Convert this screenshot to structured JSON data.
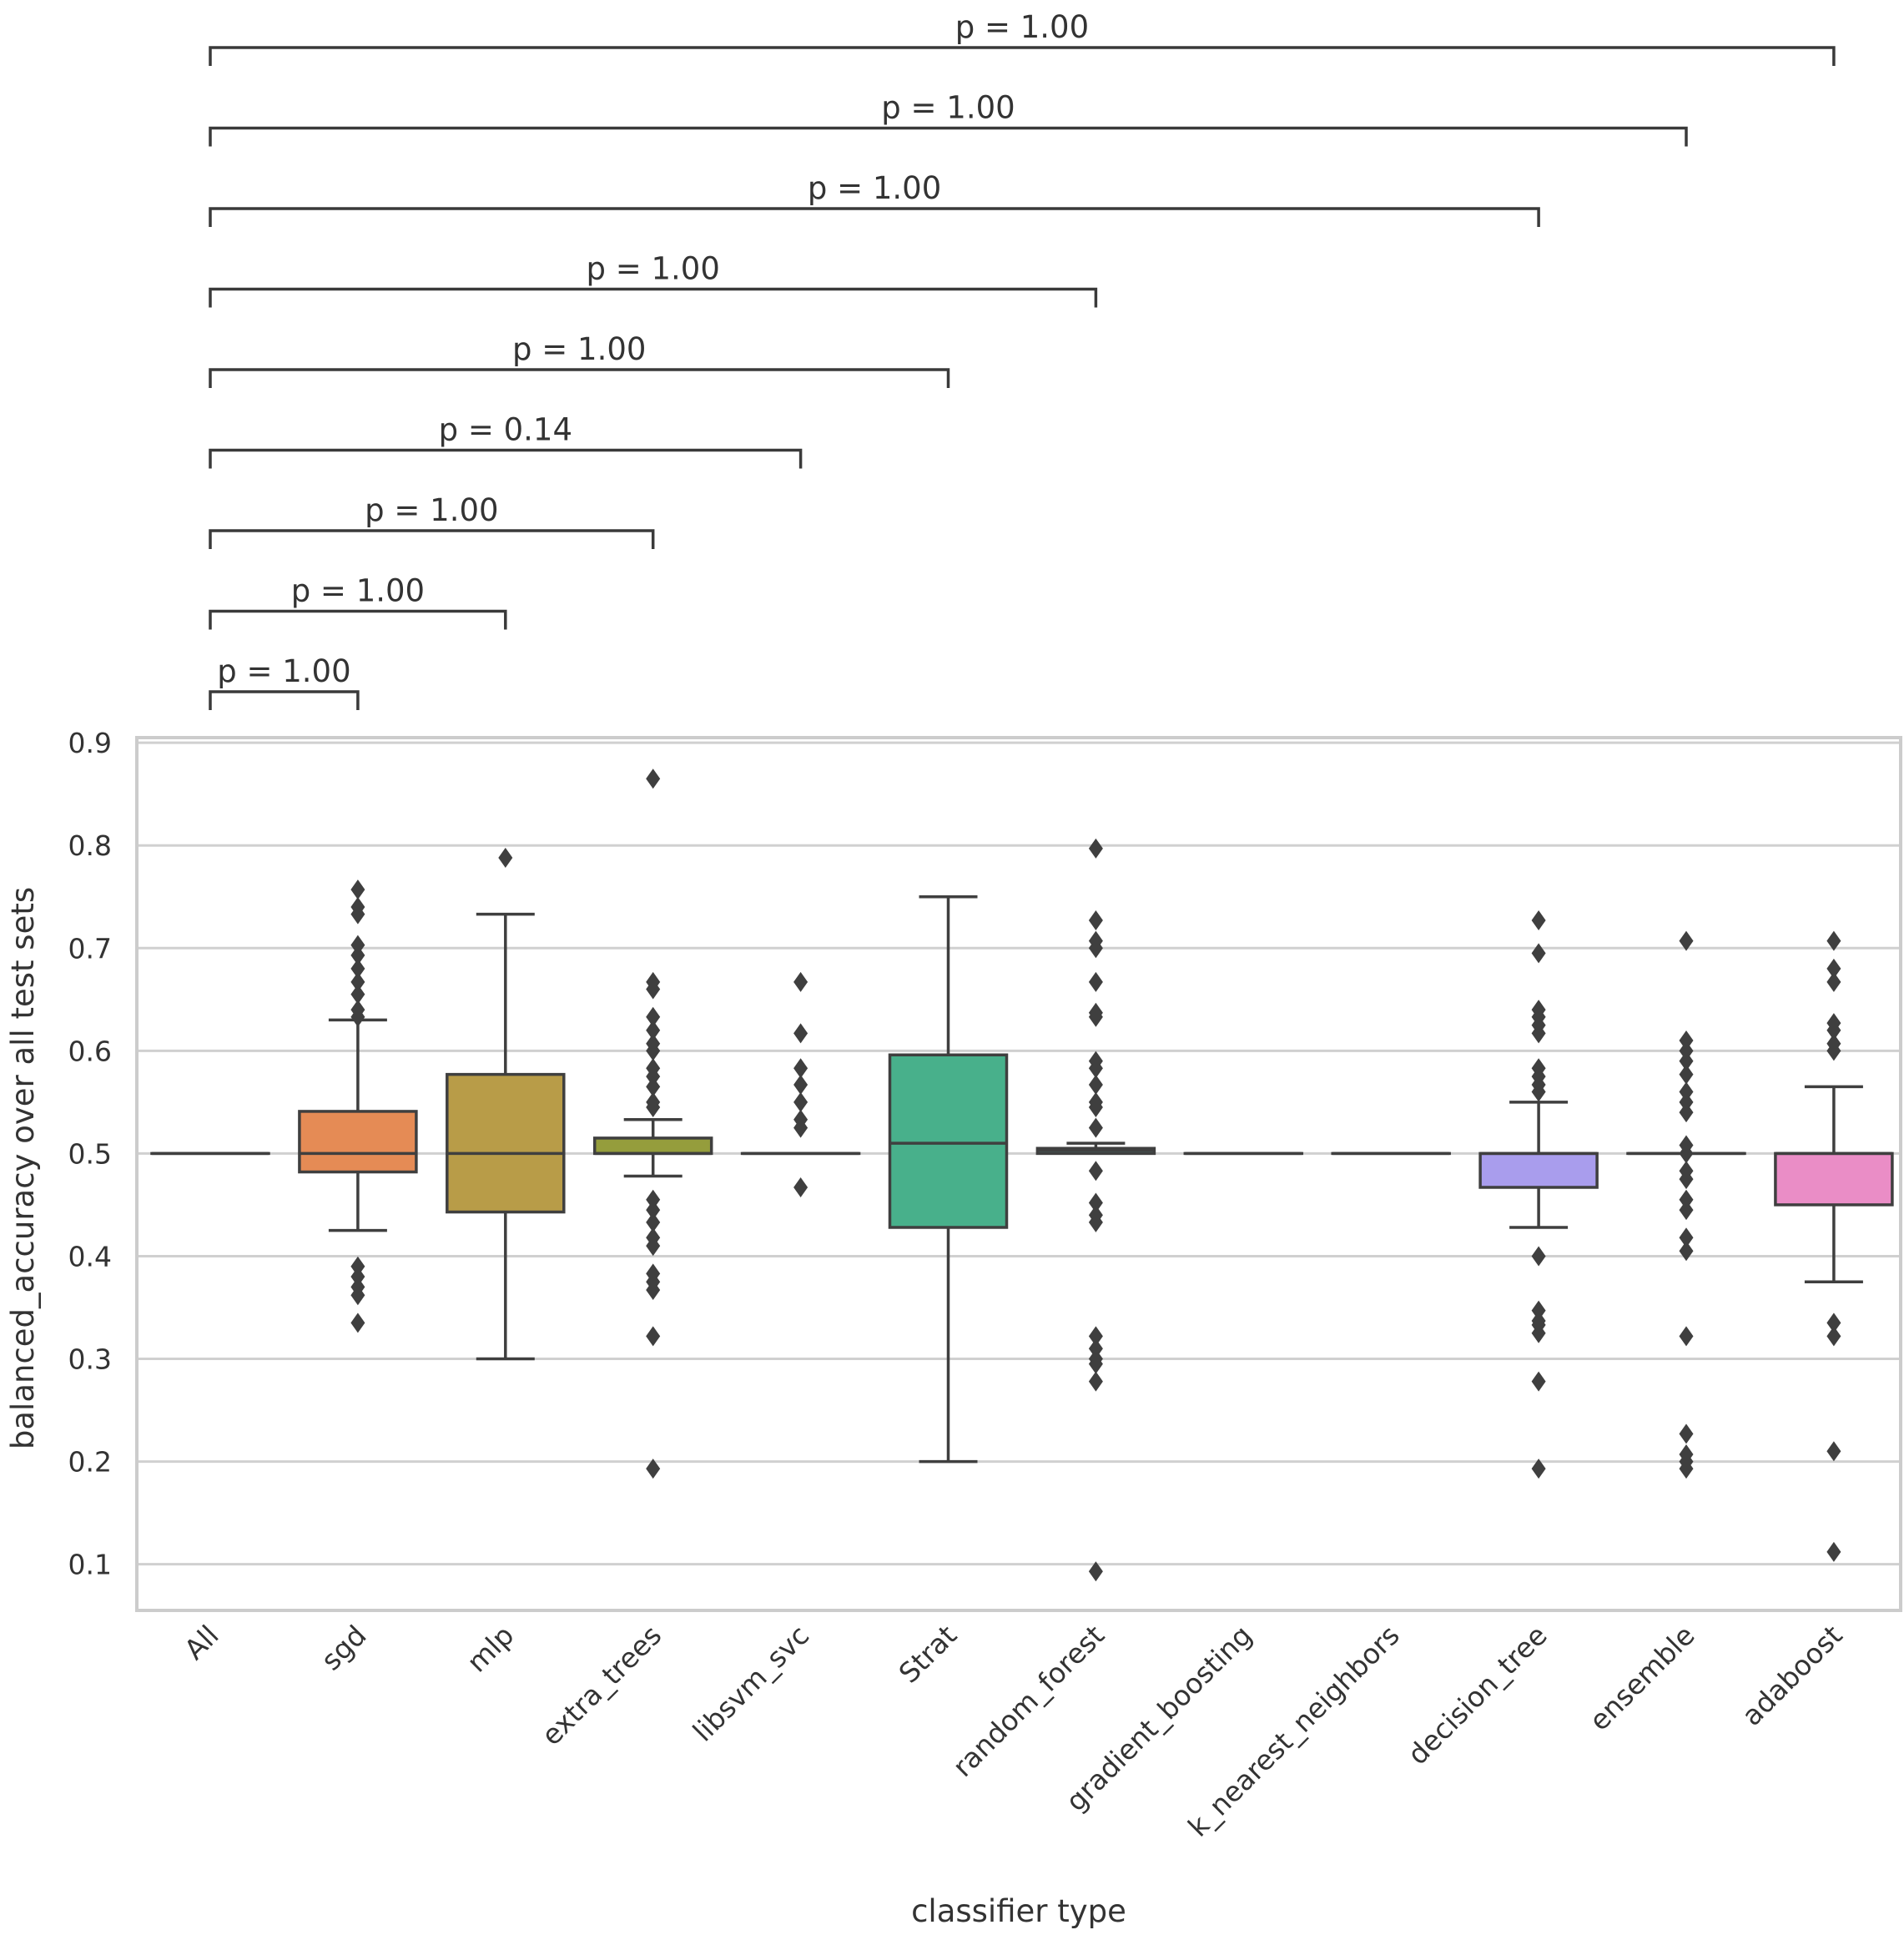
{
  "chart_data": {
    "type": "box",
    "xlabel": "classifier type",
    "ylabel": "balanced_accuracy over all test sets",
    "ylim": [
      0.055,
      0.905
    ],
    "yticks": [
      {
        "value": 0.1,
        "label": "0.1"
      },
      {
        "value": 0.2,
        "label": "0.2"
      },
      {
        "value": 0.3,
        "label": "0.3"
      },
      {
        "value": 0.4,
        "label": "0.4"
      },
      {
        "value": 0.5,
        "label": "0.5"
      },
      {
        "value": 0.6,
        "label": "0.6"
      },
      {
        "value": 0.7,
        "label": "0.7"
      },
      {
        "value": 0.8,
        "label": "0.8"
      },
      {
        "value": 0.9,
        "label": "0.9"
      }
    ],
    "grid": "horizontal",
    "categories": [
      {
        "name": "All",
        "color": "#3b6fb6",
        "q1": 0.5,
        "median": 0.5,
        "q3": 0.5,
        "whisker_low": 0.5,
        "whisker_high": 0.5,
        "fliers": []
      },
      {
        "name": "sgd",
        "color": "#e58b55",
        "q1": 0.482,
        "median": 0.5,
        "q3": 0.541,
        "whisker_low": 0.425,
        "whisker_high": 0.63,
        "fliers": [
          0.757,
          0.74,
          0.733,
          0.703,
          0.693,
          0.68,
          0.667,
          0.655,
          0.64,
          0.633,
          0.39,
          0.38,
          0.37,
          0.362,
          0.335
        ]
      },
      {
        "name": "mlp",
        "color": "#b89c48",
        "q1": 0.443,
        "median": 0.5,
        "q3": 0.577,
        "whisker_low": 0.3,
        "whisker_high": 0.733,
        "fliers": [
          0.788
        ]
      },
      {
        "name": "extra_trees",
        "color": "#959d3c",
        "q1": 0.5,
        "median": 0.5,
        "q3": 0.515,
        "whisker_low": 0.478,
        "whisker_high": 0.533,
        "fliers": [
          0.865,
          0.667,
          0.66,
          0.633,
          0.62,
          0.607,
          0.6,
          0.583,
          0.575,
          0.565,
          0.55,
          0.545,
          0.455,
          0.445,
          0.433,
          0.418,
          0.41,
          0.383,
          0.375,
          0.367,
          0.322,
          0.193
        ]
      },
      {
        "name": "libsvm_svc",
        "color": "#5e9f4f",
        "q1": 0.5,
        "median": 0.5,
        "q3": 0.5,
        "whisker_low": 0.5,
        "whisker_high": 0.5,
        "fliers": [
          0.667,
          0.617,
          0.583,
          0.567,
          0.55,
          0.533,
          0.525,
          0.467
        ]
      },
      {
        "name": "Strat",
        "color": "#48b08b",
        "q1": 0.428,
        "median": 0.51,
        "q3": 0.596,
        "whisker_low": 0.2,
        "whisker_high": 0.75,
        "fliers": []
      },
      {
        "name": "random_forest",
        "color": "#4ca6a2",
        "q1": 0.5,
        "median": 0.503,
        "q3": 0.505,
        "whisker_low": 0.5,
        "whisker_high": 0.51,
        "fliers": [
          0.797,
          0.727,
          0.707,
          0.7,
          0.667,
          0.637,
          0.633,
          0.59,
          0.583,
          0.567,
          0.55,
          0.545,
          0.525,
          0.483,
          0.452,
          0.44,
          0.433,
          0.322,
          0.31,
          0.3,
          0.295,
          0.278,
          0.093
        ]
      },
      {
        "name": "gradient_boosting",
        "color": "#4fa3c4",
        "q1": 0.5,
        "median": 0.5,
        "q3": 0.5,
        "whisker_low": 0.5,
        "whisker_high": 0.5,
        "fliers": []
      },
      {
        "name": "k_nearest_neighbors",
        "color": "#6f9fd8",
        "q1": 0.5,
        "median": 0.5,
        "q3": 0.5,
        "whisker_low": 0.5,
        "whisker_high": 0.5,
        "fliers": []
      },
      {
        "name": "decision_tree",
        "color": "#a99ded",
        "q1": 0.467,
        "median": 0.5,
        "q3": 0.5,
        "whisker_low": 0.428,
        "whisker_high": 0.55,
        "fliers": [
          0.727,
          0.695,
          0.64,
          0.633,
          0.625,
          0.617,
          0.583,
          0.575,
          0.567,
          0.56,
          0.4,
          0.347,
          0.337,
          0.333,
          0.325,
          0.278,
          0.193
        ]
      },
      {
        "name": "ensemble",
        "color": "#d28ae8",
        "q1": 0.5,
        "median": 0.5,
        "q3": 0.5,
        "whisker_low": 0.5,
        "whisker_high": 0.5,
        "fliers": [
          0.707,
          0.61,
          0.6,
          0.59,
          0.577,
          0.56,
          0.55,
          0.54,
          0.508,
          0.5,
          0.483,
          0.475,
          0.455,
          0.445,
          0.418,
          0.405,
          0.322,
          0.227,
          0.207,
          0.2,
          0.193
        ]
      },
      {
        "name": "adaboost",
        "color": "#ea8dc6",
        "q1": 0.45,
        "median": 0.5,
        "q3": 0.5,
        "whisker_low": 0.375,
        "whisker_high": 0.565,
        "fliers": [
          0.707,
          0.68,
          0.667,
          0.627,
          0.62,
          0.607,
          0.6,
          0.335,
          0.322,
          0.21,
          0.112
        ]
      }
    ],
    "comparisons": [
      {
        "from": "All",
        "to": "sgd",
        "label": "p = 1.00"
      },
      {
        "from": "All",
        "to": "mlp",
        "label": "p = 1.00"
      },
      {
        "from": "All",
        "to": "extra_trees",
        "label": "p = 1.00"
      },
      {
        "from": "All",
        "to": "libsvm_svc",
        "label": "p = 0.14"
      },
      {
        "from": "All",
        "to": "Strat",
        "label": "p = 1.00"
      },
      {
        "from": "All",
        "to": "random_forest",
        "label": "p = 1.00"
      },
      {
        "from": "All",
        "to": "decision_tree",
        "label": "p = 1.00"
      },
      {
        "from": "All",
        "to": "ensemble",
        "label": "p = 1.00"
      },
      {
        "from": "All",
        "to": "adaboost",
        "label": "p = 1.00"
      }
    ]
  }
}
